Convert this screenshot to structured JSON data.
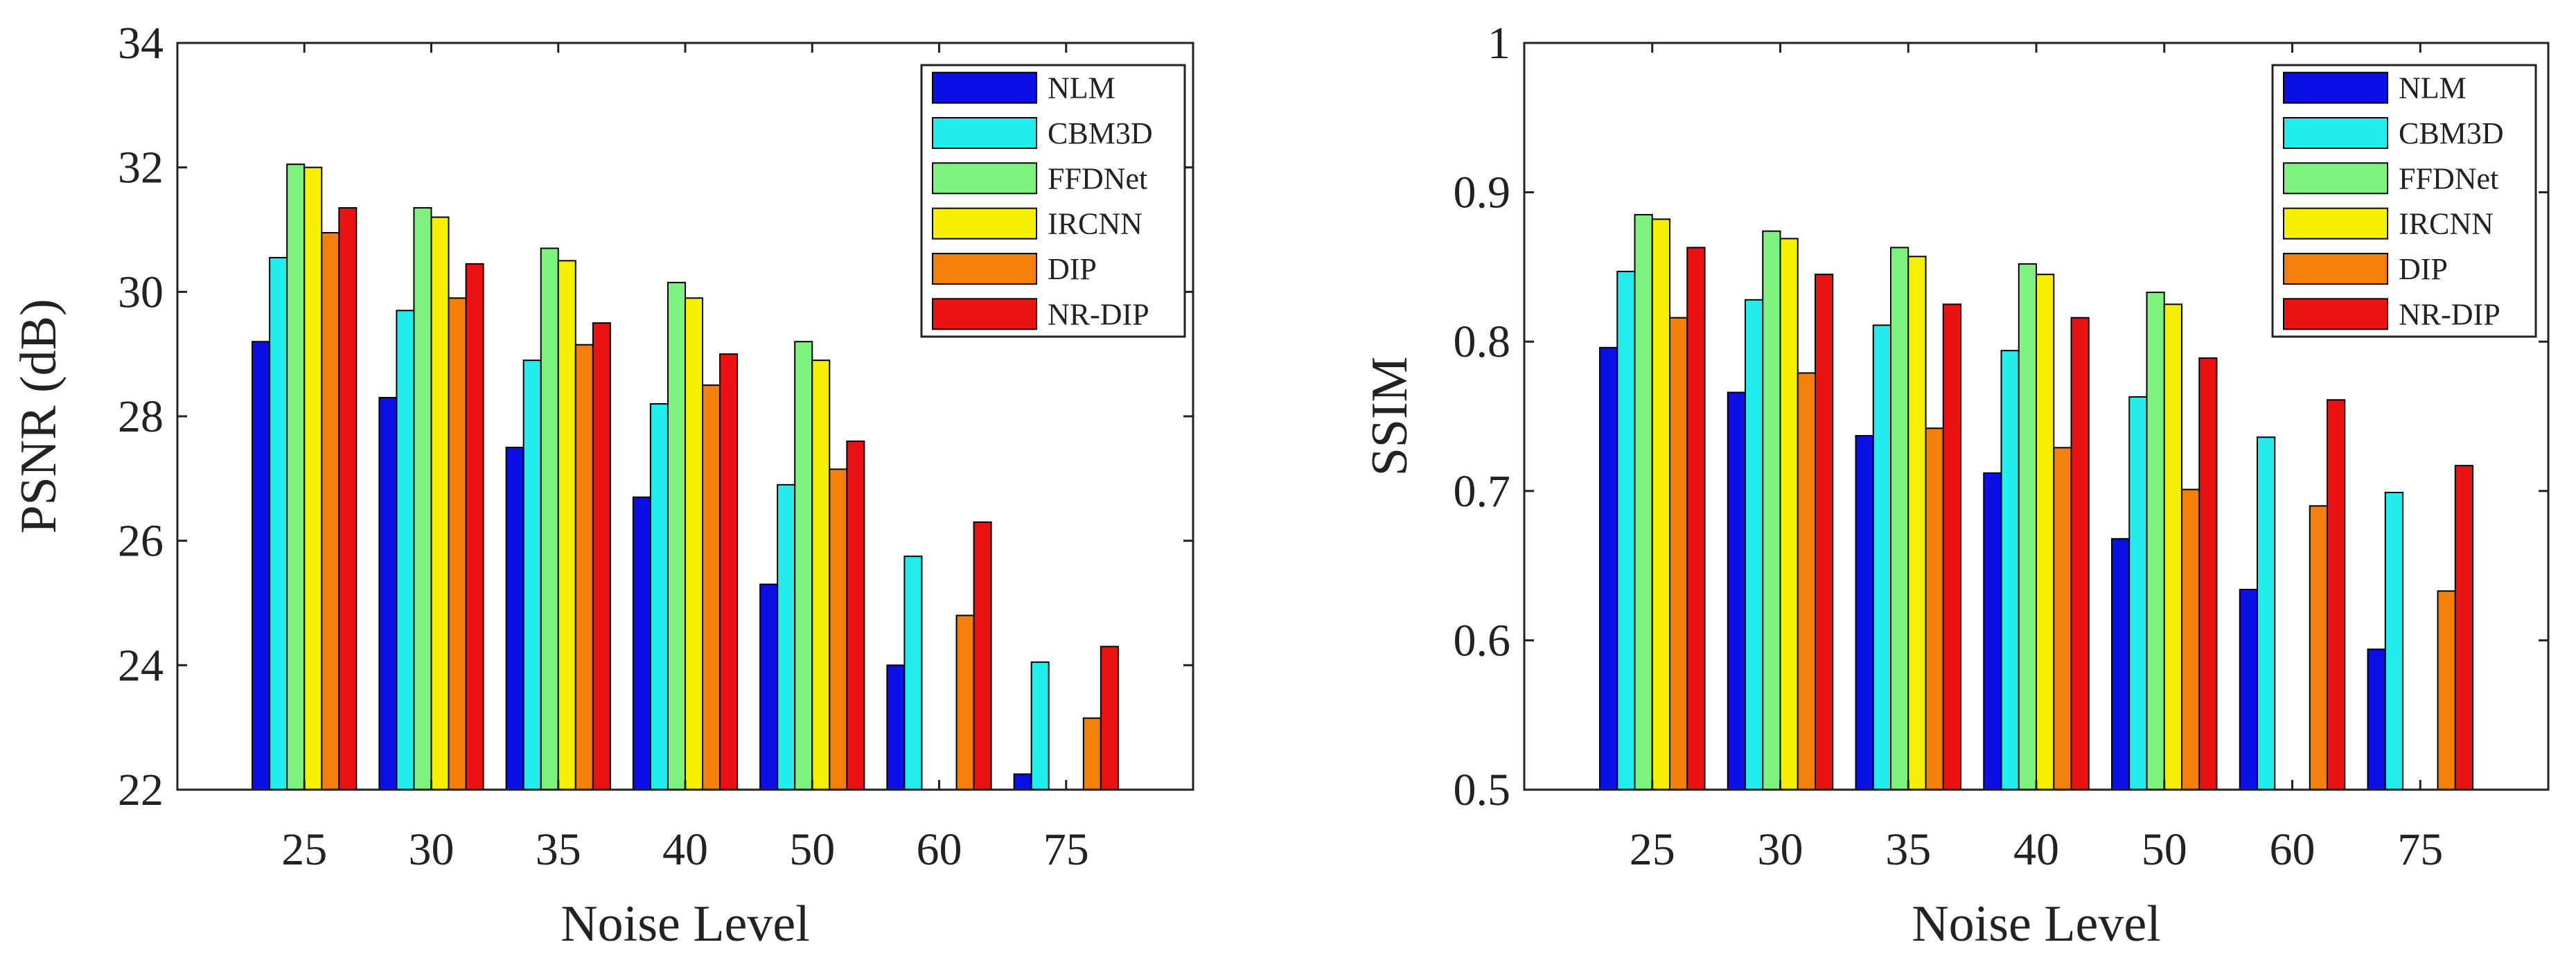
{
  "colors": {
    "NLM": "#0a10e6",
    "CBM3D": "#22ecec",
    "FFDNet": "#7ef27e",
    "IRCNN": "#f6f000",
    "DIP": "#f47f0b",
    "NR-DIP": "#ec1212"
  },
  "chart_data": [
    {
      "type": "bar",
      "categories": [
        "25",
        "30",
        "35",
        "40",
        "50",
        "60",
        "75"
      ],
      "xlabel": "Noise Level",
      "ylabel": "PSNR (dB)",
      "ylim": [
        22,
        34
      ],
      "yticks": [
        "22",
        "24",
        "26",
        "28",
        "30",
        "32",
        "34"
      ],
      "legend_position": "top-right",
      "series": [
        {
          "name": "NLM",
          "values": [
            29.2,
            28.3,
            27.5,
            26.7,
            25.3,
            24.0,
            22.25
          ]
        },
        {
          "name": "CBM3D",
          "values": [
            30.55,
            29.7,
            28.9,
            28.2,
            26.9,
            25.75,
            24.05
          ]
        },
        {
          "name": "FFDNet",
          "values": [
            32.05,
            31.35,
            30.7,
            30.15,
            29.2,
            null,
            null
          ]
        },
        {
          "name": "IRCNN",
          "values": [
            32.0,
            31.2,
            30.5,
            29.9,
            28.9,
            null,
            null
          ]
        },
        {
          "name": "DIP",
          "values": [
            30.95,
            29.9,
            29.15,
            28.5,
            27.15,
            24.8,
            23.15
          ]
        },
        {
          "name": "NR-DIP",
          "values": [
            31.35,
            30.45,
            29.5,
            29.0,
            27.6,
            26.3,
            24.3
          ]
        }
      ]
    },
    {
      "type": "bar",
      "categories": [
        "25",
        "30",
        "35",
        "40",
        "50",
        "60",
        "75"
      ],
      "xlabel": "Noise Level",
      "ylabel": "SSIM",
      "ylim": [
        0.5,
        1.0
      ],
      "yticks": [
        "0.5",
        "0.6",
        "0.7",
        "0.8",
        "0.9",
        "1"
      ],
      "legend_position": "top-right",
      "series": [
        {
          "name": "NLM",
          "values": [
            0.796,
            0.766,
            0.737,
            0.712,
            0.668,
            0.634,
            0.594
          ]
        },
        {
          "name": "CBM3D",
          "values": [
            0.847,
            0.828,
            0.811,
            0.794,
            0.763,
            0.736,
            0.699
          ]
        },
        {
          "name": "FFDNet",
          "values": [
            0.885,
            0.874,
            0.863,
            0.852,
            0.833,
            null,
            null
          ]
        },
        {
          "name": "IRCNN",
          "values": [
            0.882,
            0.869,
            0.857,
            0.845,
            0.825,
            null,
            null
          ]
        },
        {
          "name": "DIP",
          "values": [
            0.816,
            0.779,
            0.742,
            0.729,
            0.701,
            0.69,
            0.633
          ]
        },
        {
          "name": "NR-DIP",
          "values": [
            0.863,
            0.845,
            0.825,
            0.816,
            0.789,
            0.761,
            0.717
          ]
        }
      ]
    }
  ]
}
